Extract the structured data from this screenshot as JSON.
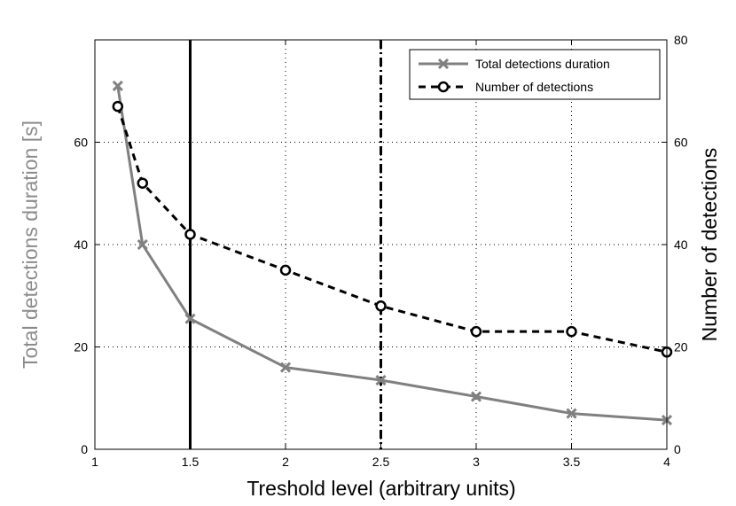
{
  "chart_data": {
    "type": "line",
    "xlabel": "Treshold level (arbitrary units)",
    "ylabel_left": "Total detections duration [s]",
    "ylabel_right": "Number of detections",
    "xlim": [
      1,
      4
    ],
    "ylim_left": [
      0,
      80
    ],
    "ylim_right": [
      0,
      80
    ],
    "x_ticks": [
      1,
      1.5,
      2,
      2.5,
      3,
      3.5,
      4
    ],
    "x_tick_labels": [
      "1",
      "1.5",
      "2",
      "2.5",
      "3",
      "3.5",
      "4"
    ],
    "y_ticks_left": [
      0,
      20,
      40,
      60
    ],
    "y_tick_labels_left": [
      "0",
      "20",
      "40",
      "60"
    ],
    "y_ticks_right": [
      0,
      20,
      40,
      60,
      80
    ],
    "y_tick_labels_right": [
      "0",
      "20",
      "40",
      "60",
      "80"
    ],
    "grid": true,
    "legend_position": "top-right",
    "vertical_lines": [
      {
        "x": 1.5,
        "style": "solid"
      },
      {
        "x": 2.5,
        "style": "dash-dot"
      }
    ],
    "series": [
      {
        "name": "Total detections duration",
        "axis": "left",
        "color": "#808080",
        "marker": "x",
        "line": "solid",
        "x": [
          1.12,
          1.25,
          1.5,
          2,
          2.5,
          3,
          3.5,
          4
        ],
        "y": [
          71,
          40,
          25.5,
          16,
          13.5,
          10.3,
          7,
          5.7
        ]
      },
      {
        "name": "Number of detections",
        "axis": "right",
        "color": "#000000",
        "marker": "o",
        "line": "dashed",
        "x": [
          1.12,
          1.25,
          1.5,
          2,
          2.5,
          3,
          3.5,
          4
        ],
        "y": [
          67,
          52,
          42,
          35,
          28,
          23,
          23,
          19
        ]
      }
    ]
  }
}
